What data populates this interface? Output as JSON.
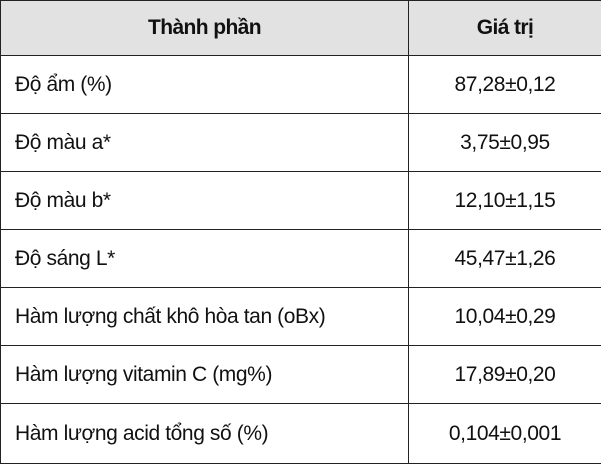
{
  "table": {
    "headers": [
      "Thành phần",
      "Giá trị"
    ],
    "rows": [
      {
        "name": "Độ ẩm (%)",
        "value": "87,28±0,12"
      },
      {
        "name": "Độ màu a*",
        "value": "3,75±0,95"
      },
      {
        "name": "Độ màu b*",
        "value": "12,10±1,15"
      },
      {
        "name": "Độ sáng L*",
        "value": "45,47±1,26"
      },
      {
        "name": "Hàm lượng chất khô hòa tan (oBx)",
        "value": "10,04±0,29"
      },
      {
        "name": "Hàm lượng vitamin C (mg%)",
        "value": "17,89±0,20"
      },
      {
        "name": "Hàm lượng acid tổng số (%)",
        "value": "0,104±0,001"
      }
    ]
  }
}
